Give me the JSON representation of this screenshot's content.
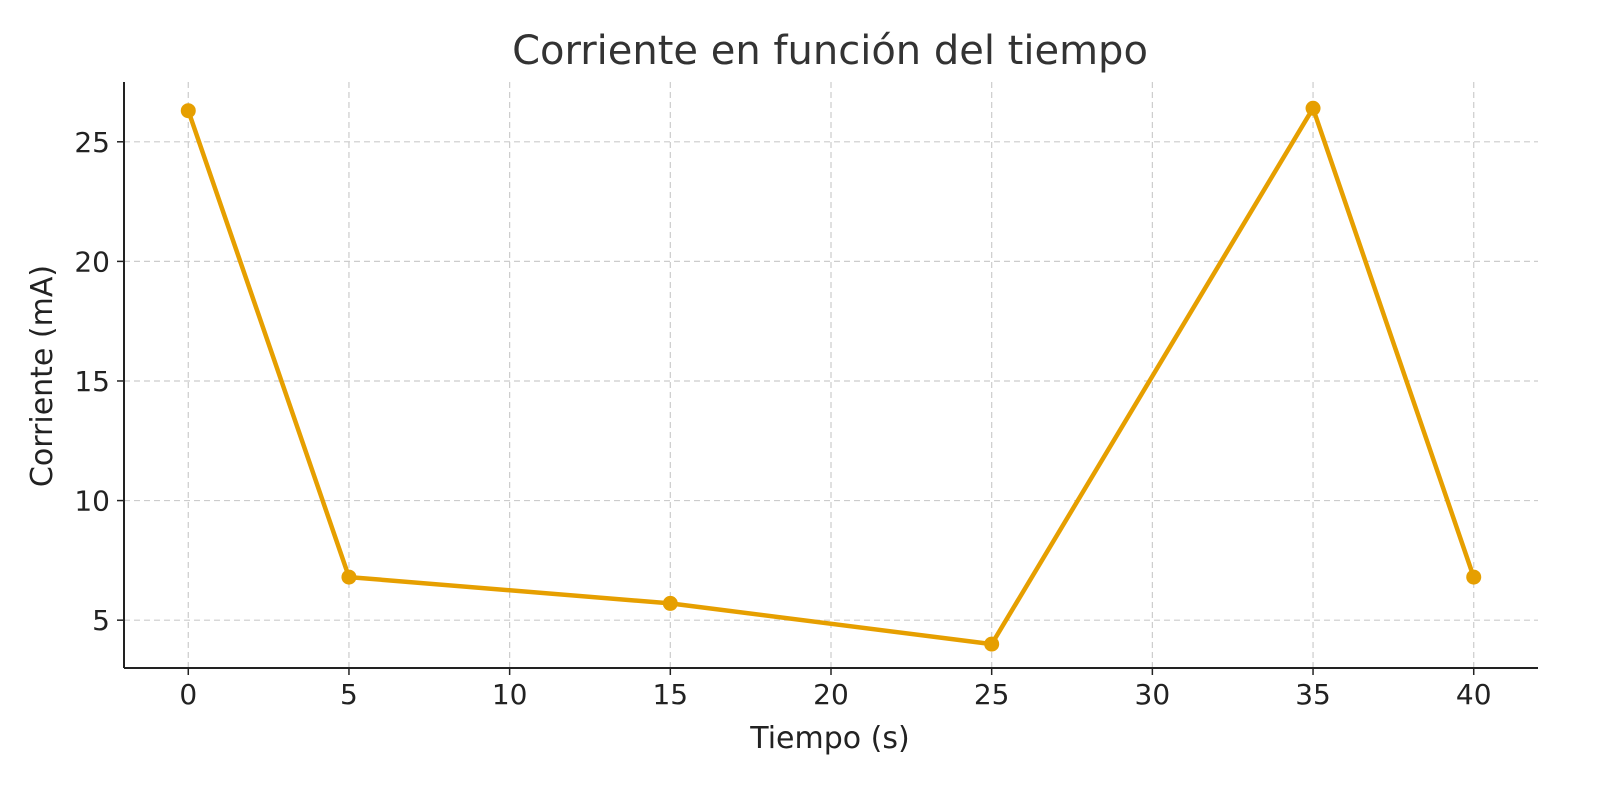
{
  "chart_data": {
    "type": "line",
    "title": "Corriente en función del tiempo",
    "xlabel": "Tiempo (s)",
    "ylabel": "Corriente (mA)",
    "xlim": [
      -2,
      42
    ],
    "ylim": [
      3,
      27.5
    ],
    "x_ticks": [
      0,
      5,
      10,
      15,
      20,
      25,
      30,
      35,
      40
    ],
    "y_ticks": [
      5,
      10,
      15,
      20,
      25
    ],
    "grid": true,
    "grid_style": "dashed",
    "series": [
      {
        "color": "#E69F00",
        "marker": "circle",
        "x": [
          0,
          5,
          15,
          25,
          35,
          40
        ],
        "y": [
          26.3,
          6.8,
          5.7,
          4.0,
          26.4,
          6.8
        ]
      }
    ]
  }
}
